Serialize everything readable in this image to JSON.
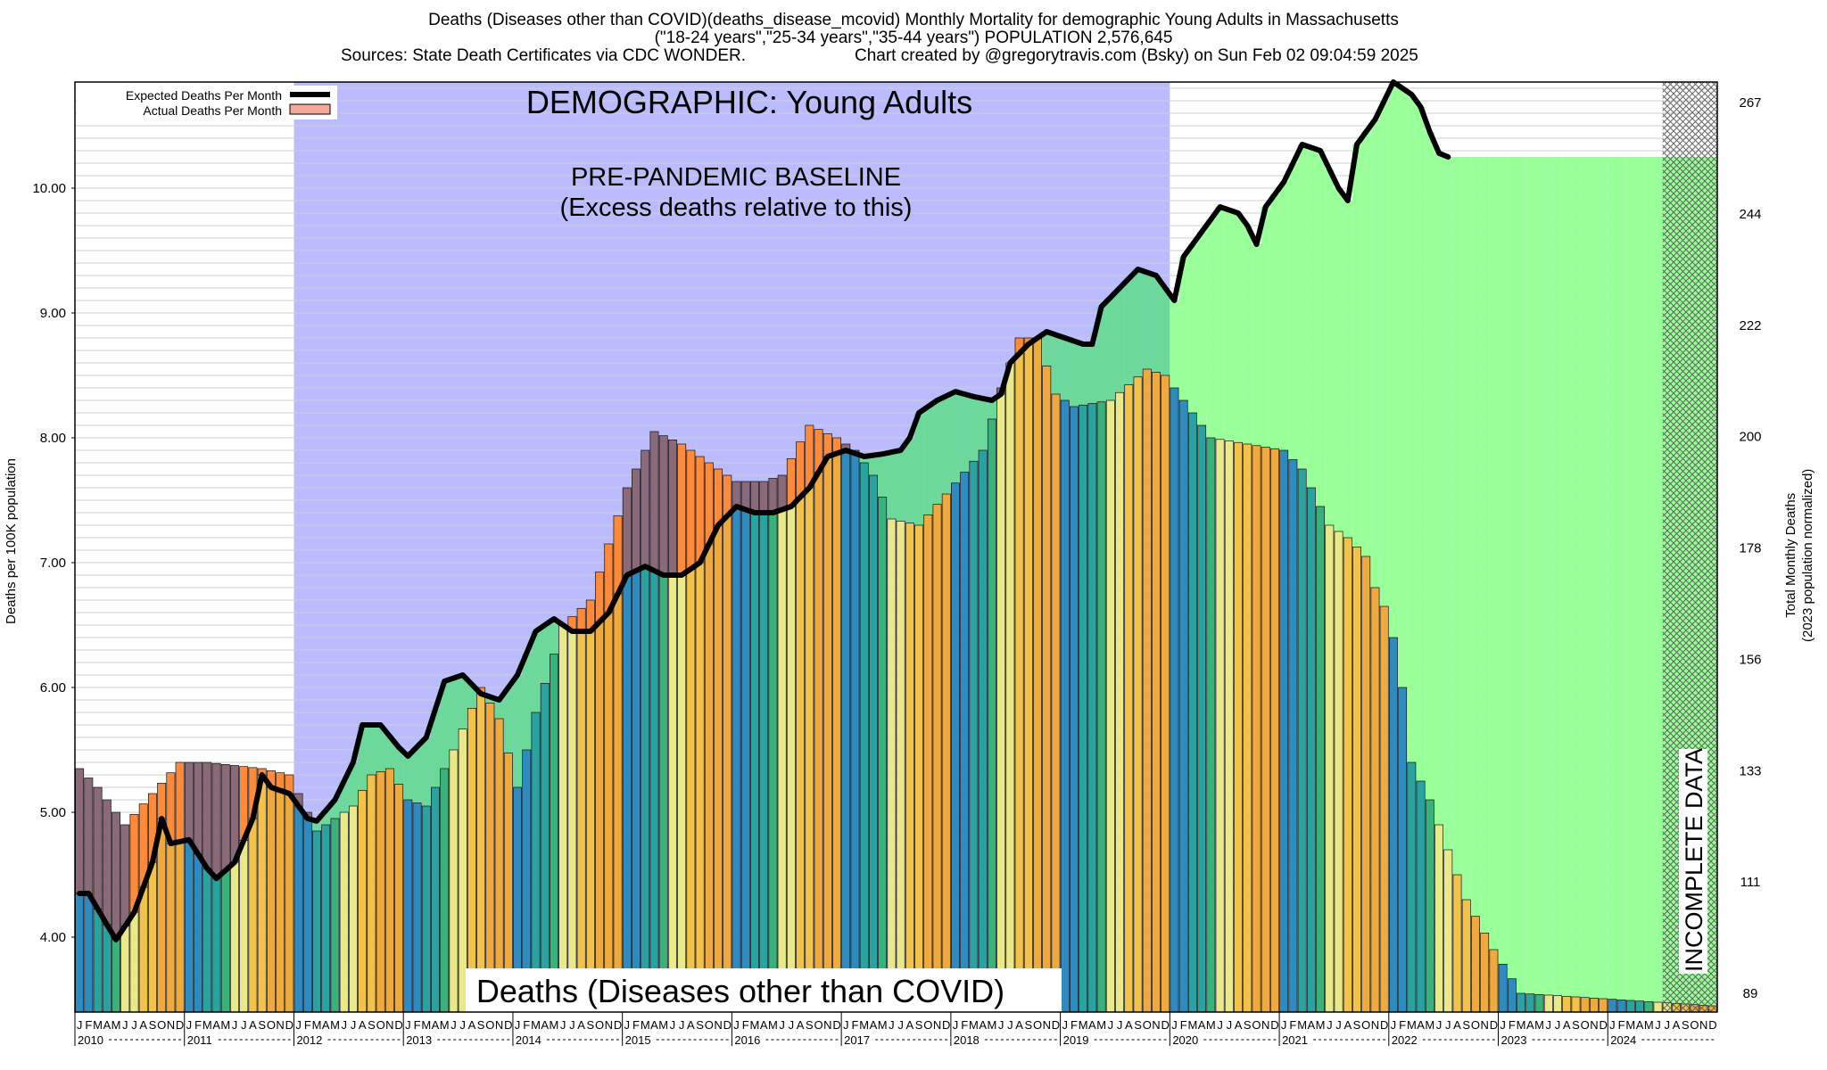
{
  "header": {
    "line1": "Deaths (Diseases other than COVID)(deaths_disease_mcovid) Monthly Mortality for demographic Young Adults in Massachusetts",
    "line2": "(\"18-24 years\",\"25-34 years\",\"35-44 years\") POPULATION 2,576,645",
    "line3_left": "Sources: State Death Certificates via CDC WONDER.",
    "line3_right": "Chart created by @gregorytravis.com (Bsky) on Sun Feb 02 09:04:59 2025"
  },
  "colors": {
    "baseline_region": "#bbbbff",
    "excess_fill": "#99ff99",
    "deficit_fill": "#6cd99a",
    "above_expected": "#ff8a3a",
    "expected_line": "#000000",
    "actual_legend": "#f4a99a",
    "month_palette": [
      "#2e8bc0",
      "#2aa3a0",
      "#3ab07a",
      "#e9e98a",
      "#f2c24a",
      "#f0a93c"
    ],
    "incomplete_hatch": "#555555"
  },
  "chart_data": {
    "type": "bar",
    "title": "DEMOGRAPHIC: Young Adults",
    "subtitle": "Deaths (Diseases other than COVID)",
    "baseline_label_1": "PRE-PANDEMIC BASELINE",
    "baseline_label_2": "(Excess deaths relative to this)",
    "incomplete_label": "INCOMPLETE DATA",
    "ylabel": "Deaths per 100K population",
    "ylabel_right_1": "Total Monthly Deaths",
    "ylabel_right_2": "(2023 population normalized)",
    "legend": [
      {
        "label": "Expected Deaths Per Month",
        "swatch": "line"
      },
      {
        "label": "Actual Deaths Per Month",
        "swatch": "box"
      }
    ],
    "legend_position": "top-left",
    "ylim": [
      3.4,
      10.85
    ],
    "yticks": [
      "4.00",
      "5.00",
      "6.00",
      "7.00",
      "8.00",
      "9.00",
      "10.00"
    ],
    "yticks_right": [
      "89",
      "111",
      "133",
      "156",
      "178",
      "200",
      "222",
      "244",
      "267"
    ],
    "x_start": "2010-01",
    "x_end": "2024-12",
    "years": [
      "2010",
      "2011",
      "2012",
      "2013",
      "2014",
      "2015",
      "2016",
      "2017",
      "2018",
      "2019",
      "2020",
      "2021",
      "2022",
      "2023",
      "2024"
    ],
    "month_letters": [
      "J",
      "F",
      "M",
      "A",
      "M",
      "J",
      "J",
      "A",
      "S",
      "O",
      "N",
      "D"
    ],
    "baseline_period": [
      "2012-01",
      "2019-12"
    ],
    "incomplete_from": "2024-07",
    "grid": true,
    "actual_anchors": [
      [
        0,
        5.35
      ],
      [
        2,
        5.2
      ],
      [
        5,
        4.9
      ],
      [
        8,
        5.15
      ],
      [
        11,
        5.4
      ],
      [
        14,
        5.4
      ],
      [
        20,
        5.35
      ],
      [
        23,
        5.3
      ],
      [
        26,
        4.85
      ],
      [
        30,
        5.05
      ],
      [
        32,
        5.3
      ],
      [
        34,
        5.35
      ],
      [
        36,
        5.1
      ],
      [
        38,
        5.05
      ],
      [
        41,
        5.5
      ],
      [
        44,
        6.0
      ],
      [
        46,
        5.75
      ],
      [
        48,
        5.2
      ],
      [
        50,
        5.8
      ],
      [
        53,
        6.5
      ],
      [
        56,
        6.7
      ],
      [
        60,
        7.6
      ],
      [
        63,
        8.05
      ],
      [
        66,
        7.95
      ],
      [
        69,
        7.8
      ],
      [
        72,
        7.65
      ],
      [
        75,
        7.65
      ],
      [
        77,
        7.7
      ],
      [
        80,
        8.1
      ],
      [
        83,
        8.0
      ],
      [
        85,
        7.9
      ],
      [
        87,
        7.7
      ],
      [
        89,
        7.35
      ],
      [
        92,
        7.3
      ],
      [
        95,
        7.55
      ],
      [
        99,
        7.9
      ],
      [
        101,
        8.4
      ],
      [
        103,
        8.8
      ],
      [
        105,
        8.8
      ],
      [
        107,
        8.35
      ],
      [
        109,
        8.25
      ],
      [
        113,
        8.3
      ],
      [
        117,
        8.55
      ],
      [
        119,
        8.5
      ],
      [
        121,
        8.3
      ],
      [
        124,
        8.0
      ],
      [
        128,
        7.95
      ],
      [
        132,
        7.9
      ],
      [
        134,
        7.75
      ],
      [
        137,
        7.3
      ],
      [
        139,
        7.2
      ],
      [
        141,
        7.05
      ],
      [
        142,
        6.8
      ],
      [
        143,
        6.65
      ],
      [
        144,
        6.4
      ],
      [
        145,
        6.0
      ],
      [
        146,
        5.4
      ],
      [
        148,
        5.1
      ],
      [
        150,
        4.7
      ],
      [
        152,
        4.3
      ],
      [
        155,
        3.9
      ],
      [
        158,
        3.55
      ],
      [
        179,
        3.45
      ]
    ],
    "expected_anchors": [
      [
        0,
        4.35
      ],
      [
        1,
        4.35
      ],
      [
        3,
        4.1
      ],
      [
        4,
        3.98
      ],
      [
        6,
        4.2
      ],
      [
        8,
        4.6
      ],
      [
        9,
        4.95
      ],
      [
        10,
        4.75
      ],
      [
        12,
        4.78
      ],
      [
        14,
        4.55
      ],
      [
        15,
        4.47
      ],
      [
        17,
        4.6
      ],
      [
        19,
        4.95
      ],
      [
        20,
        5.3
      ],
      [
        21,
        5.2
      ],
      [
        23,
        5.15
      ],
      [
        25,
        4.95
      ],
      [
        26,
        4.93
      ],
      [
        28,
        5.1
      ],
      [
        30,
        5.4
      ],
      [
        31,
        5.7
      ],
      [
        33,
        5.7
      ],
      [
        35,
        5.52
      ],
      [
        36,
        5.45
      ],
      [
        38,
        5.6
      ],
      [
        40,
        6.05
      ],
      [
        42,
        6.1
      ],
      [
        44,
        5.95
      ],
      [
        46,
        5.9
      ],
      [
        48,
        6.1
      ],
      [
        50,
        6.45
      ],
      [
        52,
        6.55
      ],
      [
        54,
        6.45
      ],
      [
        56,
        6.45
      ],
      [
        58,
        6.6
      ],
      [
        60,
        6.9
      ],
      [
        62,
        6.97
      ],
      [
        64,
        6.9
      ],
      [
        66,
        6.9
      ],
      [
        68,
        7.0
      ],
      [
        70,
        7.3
      ],
      [
        72,
        7.45
      ],
      [
        74,
        7.4
      ],
      [
        76,
        7.4
      ],
      [
        78,
        7.45
      ],
      [
        80,
        7.6
      ],
      [
        82,
        7.85
      ],
      [
        84,
        7.9
      ],
      [
        86,
        7.85
      ],
      [
        88,
        7.87
      ],
      [
        90,
        7.9
      ],
      [
        91,
        8.0
      ],
      [
        92,
        8.2
      ],
      [
        94,
        8.3
      ],
      [
        96,
        8.37
      ],
      [
        98,
        8.33
      ],
      [
        100,
        8.3
      ],
      [
        101,
        8.35
      ],
      [
        102,
        8.6
      ],
      [
        104,
        8.75
      ],
      [
        106,
        8.85
      ],
      [
        108,
        8.8
      ],
      [
        110,
        8.75
      ],
      [
        111,
        8.75
      ],
      [
        112,
        9.05
      ],
      [
        114,
        9.2
      ],
      [
        116,
        9.35
      ],
      [
        118,
        9.3
      ],
      [
        119,
        9.2
      ],
      [
        120,
        9.1
      ],
      [
        121,
        9.45
      ],
      [
        123,
        9.65
      ],
      [
        125,
        9.85
      ],
      [
        127,
        9.8
      ],
      [
        128,
        9.7
      ],
      [
        129,
        9.55
      ],
      [
        130,
        9.85
      ],
      [
        132,
        10.05
      ],
      [
        134,
        10.35
      ],
      [
        136,
        10.3
      ],
      [
        137,
        10.15
      ],
      [
        138,
        10.0
      ],
      [
        139,
        9.9
      ],
      [
        140,
        10.35
      ],
      [
        142,
        10.55
      ],
      [
        144,
        10.85
      ],
      [
        146,
        10.75
      ],
      [
        147,
        10.65
      ],
      [
        148,
        10.45
      ],
      [
        149,
        10.28
      ],
      [
        150,
        10.25
      ]
    ]
  }
}
